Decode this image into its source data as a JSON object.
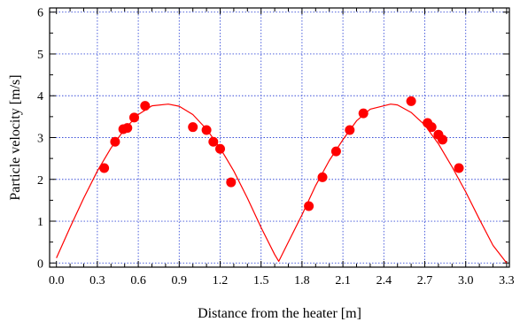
{
  "chart_data": {
    "type": "scatter",
    "title": "",
    "xlabel": "Distance from the heater [m]",
    "ylabel": "Particle velocity [m/s]",
    "xlim": [
      -0.05,
      3.32
    ],
    "ylim": [
      -0.1,
      6.1
    ],
    "xticks": [
      "0.0",
      "0.3",
      "0.6",
      "0.9",
      "1.2",
      "1.5",
      "1.8",
      "2.1",
      "2.4",
      "2.7",
      "3.0",
      "3.3"
    ],
    "yticks": [
      "0",
      "1",
      "2",
      "3",
      "4",
      "5",
      "6"
    ],
    "grid": true,
    "series": [
      {
        "kind": "points",
        "color": "#ff0000",
        "x": [
          0.35,
          0.43,
          0.49,
          0.52,
          0.57,
          0.65,
          1.0,
          1.1,
          1.15,
          1.2,
          1.28,
          1.85,
          1.95,
          2.05,
          2.15,
          2.25,
          2.6,
          2.72,
          2.75,
          2.8,
          2.83,
          2.95
        ],
        "y": [
          2.27,
          2.9,
          3.2,
          3.23,
          3.48,
          3.76,
          3.25,
          3.18,
          2.9,
          2.73,
          1.93,
          1.36,
          2.05,
          2.67,
          3.18,
          3.58,
          3.87,
          3.35,
          3.25,
          3.07,
          2.95,
          2.27
        ]
      },
      {
        "kind": "curve",
        "color": "#ff0000",
        "x": [
          0.0,
          0.1,
          0.2,
          0.3,
          0.4,
          0.5,
          0.6,
          0.7,
          0.82,
          0.9,
          1.0,
          1.1,
          1.2,
          1.3,
          1.4,
          1.5,
          1.6,
          1.63,
          1.7,
          1.8,
          1.9,
          2.0,
          2.1,
          2.2,
          2.3,
          2.45,
          2.5,
          2.6,
          2.7,
          2.8,
          2.9,
          3.0,
          3.1,
          3.2,
          3.3
        ],
        "y": [
          0.12,
          0.85,
          1.55,
          2.2,
          2.75,
          3.2,
          3.55,
          3.76,
          3.8,
          3.75,
          3.55,
          3.2,
          2.75,
          2.2,
          1.55,
          0.85,
          0.2,
          0.04,
          0.5,
          1.15,
          1.85,
          2.45,
          2.95,
          3.4,
          3.68,
          3.8,
          3.78,
          3.6,
          3.3,
          2.85,
          2.3,
          1.7,
          1.05,
          0.42,
          0.0
        ]
      }
    ]
  }
}
